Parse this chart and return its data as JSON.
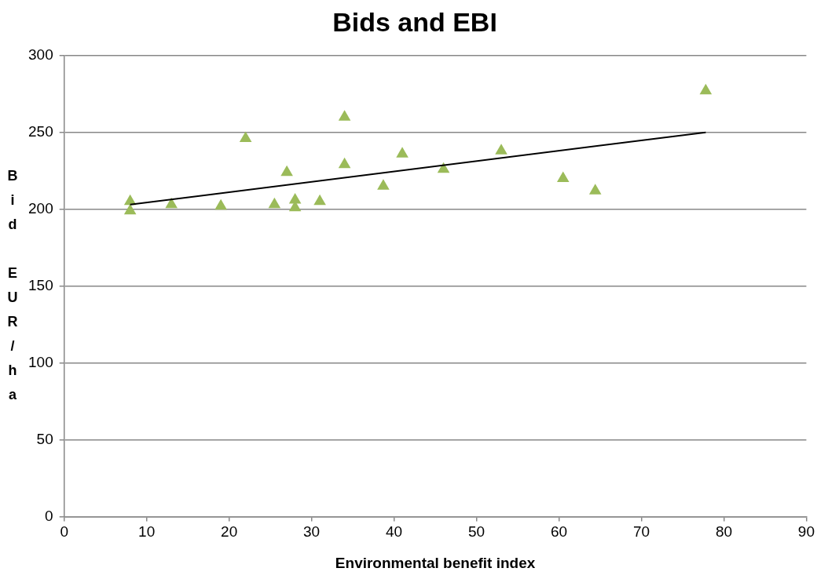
{
  "chart_data": {
    "type": "scatter",
    "title": "Bids and EBI",
    "xlabel": "Environmental benefit index",
    "ylabel": "Bid EUR/ha",
    "xlim": [
      0,
      90
    ],
    "xticks": [
      0,
      10,
      20,
      30,
      40,
      50,
      60,
      70,
      80,
      90
    ],
    "ylim": [
      0,
      300
    ],
    "yticks": [
      0,
      50,
      100,
      150,
      200,
      250,
      300
    ],
    "grid": "y",
    "marker": "triangle",
    "series": [
      {
        "color": "#9bbb59",
        "x": [
          8,
          8,
          13,
          19,
          22,
          25.5,
          27,
          28,
          28,
          31,
          34,
          34,
          38.7,
          41,
          46,
          53,
          60.5,
          64.4,
          77.8
        ],
        "values": [
          205,
          199,
          203,
          202,
          246,
          203,
          224,
          206,
          201,
          205,
          260,
          229,
          215,
          236,
          226,
          238,
          220,
          212,
          277
        ]
      },
      {
        "type": "line",
        "color": "#000000",
        "marker": "none",
        "x": [
          8,
          77.8
        ],
        "values": [
          203,
          250
        ]
      }
    ]
  }
}
